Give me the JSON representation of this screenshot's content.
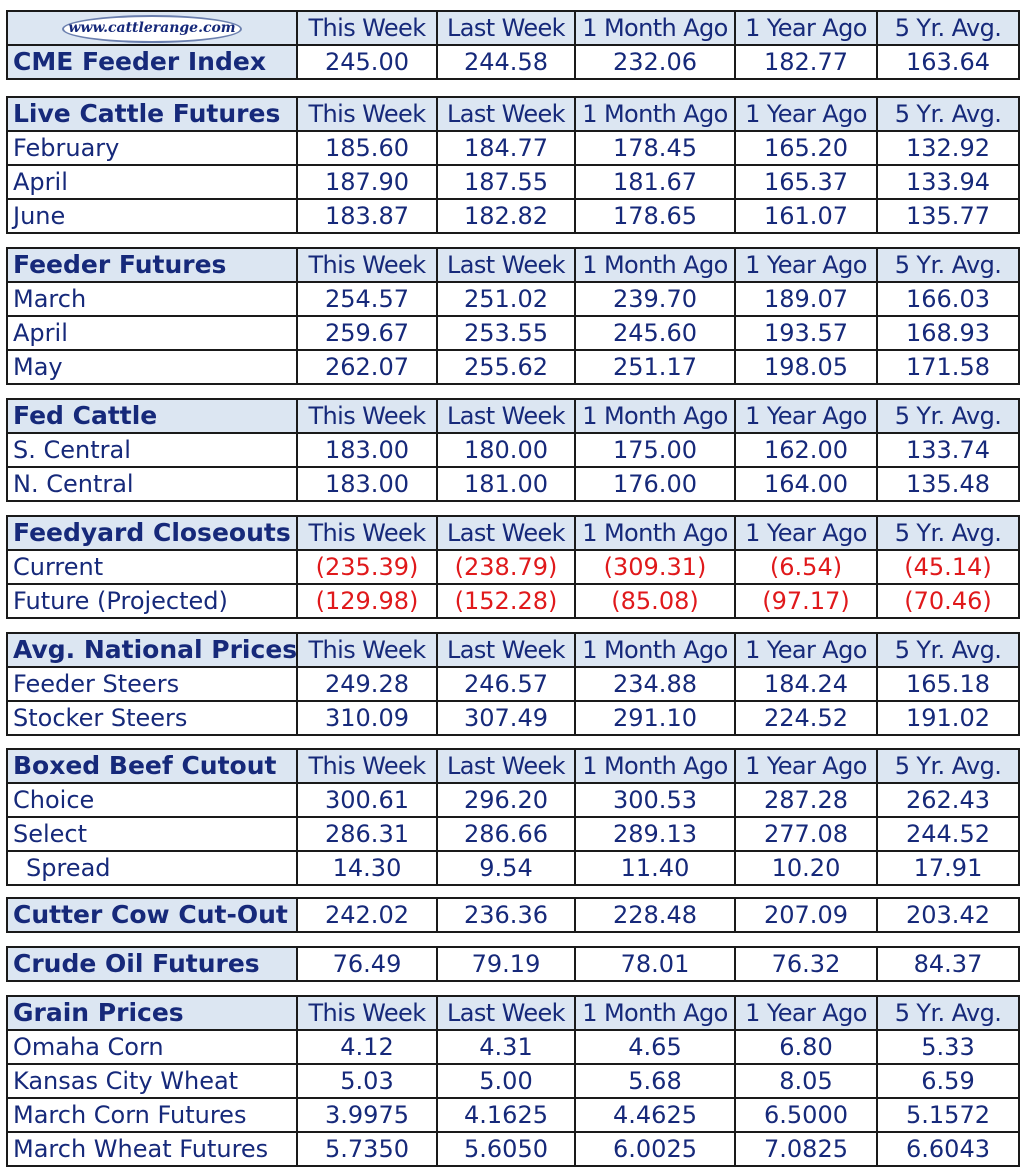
{
  "logo_text": "www.cattlerange.com",
  "columns": [
    "This Week",
    "Last Week",
    "1 Month Ago",
    "1 Year Ago",
    "5 Yr. Avg."
  ],
  "colors": {
    "header_bg": "#dce6f2",
    "text": "#16297a",
    "negative": "#e0191b",
    "border": "#1a1a1a"
  },
  "sections": [
    {
      "title": "CME Feeder Index",
      "rows": [],
      "values": [
        "245.00",
        "244.58",
        "232.06",
        "182.77",
        "163.64"
      ]
    },
    {
      "title": "Live Cattle Futures",
      "rows": [
        {
          "label": "February",
          "values": [
            "185.60",
            "184.77",
            "178.45",
            "165.20",
            "132.92"
          ]
        },
        {
          "label": "April",
          "values": [
            "187.90",
            "187.55",
            "181.67",
            "165.37",
            "133.94"
          ]
        },
        {
          "label": "June",
          "values": [
            "183.87",
            "182.82",
            "178.65",
            "161.07",
            "135.77"
          ]
        }
      ]
    },
    {
      "title": "Feeder Futures",
      "rows": [
        {
          "label": "March",
          "values": [
            "254.57",
            "251.02",
            "239.70",
            "189.07",
            "166.03"
          ]
        },
        {
          "label": "April",
          "values": [
            "259.67",
            "253.55",
            "245.60",
            "193.57",
            "168.93"
          ]
        },
        {
          "label": "May",
          "values": [
            "262.07",
            "255.62",
            "251.17",
            "198.05",
            "171.58"
          ]
        }
      ]
    },
    {
      "title": "Fed Cattle",
      "rows": [
        {
          "label": "S. Central",
          "values": [
            "183.00",
            "180.00",
            "175.00",
            "162.00",
            "133.74"
          ]
        },
        {
          "label": "N. Central",
          "values": [
            "183.00",
            "181.00",
            "176.00",
            "164.00",
            "135.48"
          ]
        }
      ]
    },
    {
      "title": "Feedyard Closeouts",
      "rows": [
        {
          "label": "Current",
          "values": [
            "(235.39)",
            "(238.79)",
            "(309.31)",
            "(6.54)",
            "(45.14)"
          ]
        },
        {
          "label": "Future (Projected)",
          "values": [
            "(129.98)",
            "(152.28)",
            "(85.08)",
            "(97.17)",
            "(70.46)"
          ]
        }
      ]
    },
    {
      "title": "Avg. National Prices",
      "rows": [
        {
          "label": "Feeder Steers",
          "values": [
            "249.28",
            "246.57",
            "234.88",
            "184.24",
            "165.18"
          ]
        },
        {
          "label": "Stocker Steers",
          "values": [
            "310.09",
            "307.49",
            "291.10",
            "224.52",
            "191.02"
          ]
        }
      ]
    },
    {
      "title": "Boxed Beef Cutout",
      "rows": [
        {
          "label": "Choice",
          "values": [
            "300.61",
            "296.20",
            "300.53",
            "287.28",
            "262.43"
          ]
        },
        {
          "label": "Select",
          "values": [
            "286.31",
            "286.66",
            "289.13",
            "277.08",
            "244.52"
          ]
        },
        {
          "label": "Spread",
          "values": [
            "14.30",
            "9.54",
            "11.40",
            "10.20",
            "17.91"
          ]
        }
      ]
    },
    {
      "title": "Cutter Cow Cut-Out",
      "rows": [],
      "values": [
        "242.02",
        "236.36",
        "228.48",
        "207.09",
        "203.42"
      ]
    },
    {
      "title": "Crude Oil Futures",
      "rows": [],
      "values": [
        "76.49",
        "79.19",
        "78.01",
        "76.32",
        "84.37"
      ]
    },
    {
      "title": "Grain Prices",
      "rows": [
        {
          "label": "Omaha Corn",
          "values": [
            "4.12",
            "4.31",
            "4.65",
            "6.80",
            "5.33"
          ]
        },
        {
          "label": "Kansas City Wheat",
          "values": [
            "5.03",
            "5.00",
            "5.68",
            "8.05",
            "6.59"
          ]
        },
        {
          "label": "March Corn Futures",
          "values": [
            "3.9975",
            "4.1625",
            "4.4625",
            "6.5000",
            "5.1572"
          ]
        },
        {
          "label": "March Wheat Futures",
          "values": [
            "5.7350",
            "5.6050",
            "6.0025",
            "7.0825",
            "6.6043"
          ]
        }
      ]
    }
  ]
}
